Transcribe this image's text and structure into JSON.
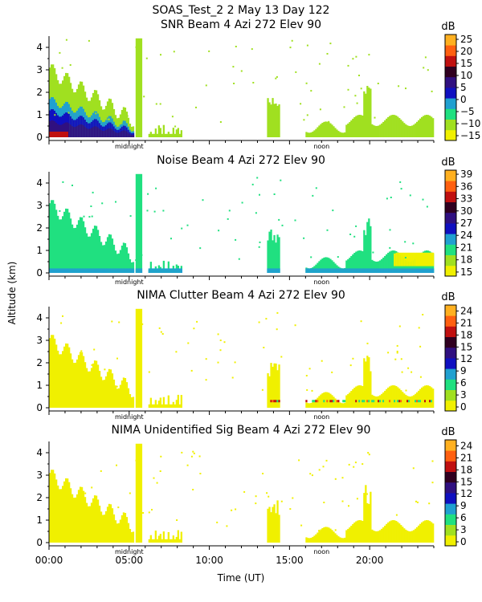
{
  "figure": {
    "title": "SOAS_Test_2    2 May 13 Day 122",
    "xlabel": "Time (UT)",
    "ylabel": "Altitude (km)",
    "xticks": [
      "00:00",
      "05:00",
      "10:00",
      "15:00",
      "20:00"
    ],
    "xtick_values": [
      0,
      5,
      10,
      15,
      20
    ],
    "xlim_hours": [
      0,
      24
    ],
    "markers": [
      {
        "label": "midnight",
        "hour": 5
      },
      {
        "label": "noon",
        "hour": 17
      }
    ],
    "colorbar_unit": "dB",
    "colors": {
      "background": "#ffffff",
      "axis": "#000000"
    }
  },
  "chart_data": [
    {
      "type": "heatmap",
      "title": "SNR Beam 4 Azi 272 Elev 90",
      "ylim": [
        0,
        4.5
      ],
      "yticks": [
        0,
        1,
        2,
        3,
        4
      ],
      "colorbar": {
        "unit": "dB",
        "ticks": [
          "25",
          "20",
          "15",
          "10",
          "5",
          "0",
          "−5",
          "−10",
          "−15"
        ],
        "tick_values": [
          25,
          20,
          15,
          10,
          5,
          0,
          -5,
          -10,
          -15
        ],
        "range": [
          -17,
          27
        ]
      }
    },
    {
      "type": "heatmap",
      "title": "Noise Beam 4 Azi 272 Elev 90",
      "ylim": [
        0,
        4.5
      ],
      "yticks": [
        0,
        1,
        2,
        3,
        4
      ],
      "colorbar": {
        "unit": "dB",
        "ticks": [
          "39",
          "36",
          "33",
          "30",
          "27",
          "24",
          "21",
          "18",
          "15"
        ],
        "tick_values": [
          39,
          36,
          33,
          30,
          27,
          24,
          21,
          18,
          15
        ],
        "range": [
          14,
          40
        ]
      }
    },
    {
      "type": "heatmap",
      "title": "NIMA Clutter Beam 4 Azi 272 Elev 90",
      "ylim": [
        0,
        4.5
      ],
      "yticks": [
        0,
        1,
        2,
        3,
        4
      ],
      "colorbar": {
        "unit": "dB",
        "ticks": [
          "24",
          "21",
          "18",
          "15",
          "12",
          "9",
          "6",
          "3",
          "0"
        ],
        "tick_values": [
          24,
          21,
          18,
          15,
          12,
          9,
          6,
          3,
          0
        ],
        "range": [
          -1,
          25.5
        ]
      }
    },
    {
      "type": "heatmap",
      "title": "NIMA Unidentified Sig Beam 4 Azi 272 Elev 90",
      "ylim": [
        0,
        4.5
      ],
      "yticks": [
        0,
        1,
        2,
        3,
        4
      ],
      "colorbar": {
        "unit": "dB",
        "ticks": [
          "24",
          "21",
          "18",
          "15",
          "12",
          "9",
          "6",
          "3",
          "0"
        ],
        "tick_values": [
          24,
          21,
          18,
          15,
          12,
          9,
          6,
          3,
          0
        ],
        "range": [
          -1,
          25.5
        ]
      }
    }
  ],
  "colormap": [
    "#f0f000",
    "#a0e020",
    "#20e080",
    "#20a0d0",
    "#1010c0",
    "#301080",
    "#300020",
    "#c01010",
    "#ff6010",
    "#ffb020"
  ],
  "echo_regions": [
    {
      "hours": [
        0,
        5.3
      ],
      "top_km": 3.0,
      "kind": "boundary_layer"
    },
    {
      "hours": [
        5.4,
        5.8
      ],
      "top_km": 4.4,
      "kind": "column"
    },
    {
      "hours": [
        6.2,
        8.3
      ],
      "top_km": 0.6,
      "kind": "scattered"
    },
    {
      "hours": [
        13.6,
        14.4
      ],
      "top_km": 2.0,
      "kind": "plume"
    },
    {
      "hours": [
        16,
        24
      ],
      "top_km": 1.0,
      "kind": "low_layer"
    },
    {
      "hours": [
        19.6,
        20.1
      ],
      "top_km": 2.6,
      "kind": "plume"
    }
  ]
}
